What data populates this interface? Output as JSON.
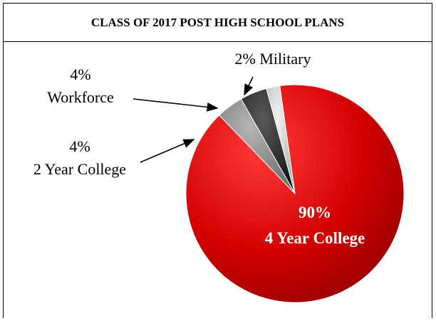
{
  "chart_data": {
    "type": "pie",
    "title": "CLASS OF 2017 POST HIGH SCHOOL PLANS",
    "slices": [
      {
        "category": "4 Year College",
        "value": 90,
        "label": "90%",
        "color": "#cc0000"
      },
      {
        "category": "2 Year College",
        "value": 4,
        "label": "4%",
        "color": "#8a8a8a"
      },
      {
        "category": "Workforce",
        "value": 4,
        "label": "4%",
        "color": "#262626"
      },
      {
        "category": "Military",
        "value": 2,
        "label": "2%",
        "color": "#cfcfcf"
      }
    ],
    "annotations": {
      "military": "2% Military",
      "workforce_pct": "4%",
      "workforce_name": "Workforce",
      "two_year_pct": "4%",
      "two_year_name": "2 Year College",
      "four_year_pct": "90%",
      "four_year_name": "4 Year College"
    }
  }
}
